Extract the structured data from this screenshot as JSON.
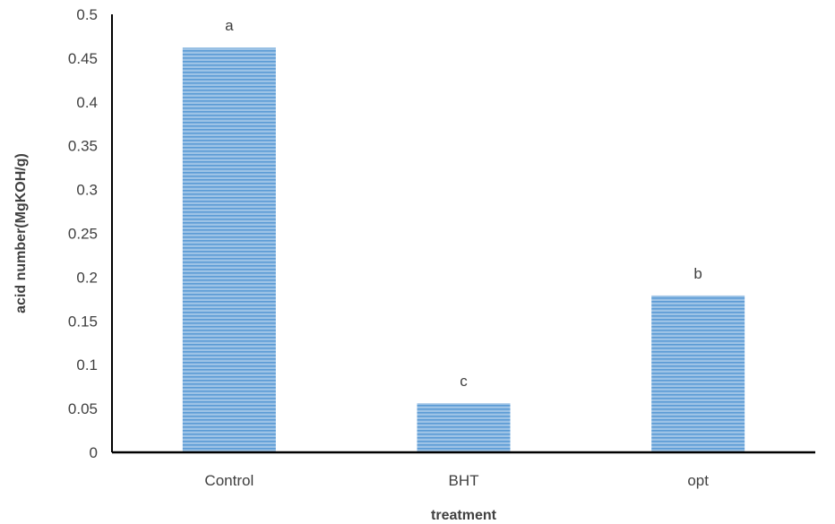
{
  "chart_data": {
    "type": "bar",
    "categories": [
      "Control",
      "BHT",
      "opt"
    ],
    "values": [
      0.462,
      0.056,
      0.179
    ],
    "data_labels": [
      "a",
      "c",
      "b"
    ],
    "title": "",
    "xlabel": "treatment",
    "ylabel": "acid number(MgKOH/g)",
    "ylim": [
      0,
      0.5
    ],
    "yticks": [
      "0",
      "0.05",
      "0.1",
      "0.15",
      "0.2",
      "0.25",
      "0.3",
      "0.35",
      "0.4",
      "0.45",
      "0.5"
    ],
    "grid": false,
    "legend": "none",
    "colors": {
      "bar_fill": "#9dc3e6",
      "bar_stripe": "#5b9bd5",
      "axis": "#000000",
      "text": "#404040"
    }
  }
}
